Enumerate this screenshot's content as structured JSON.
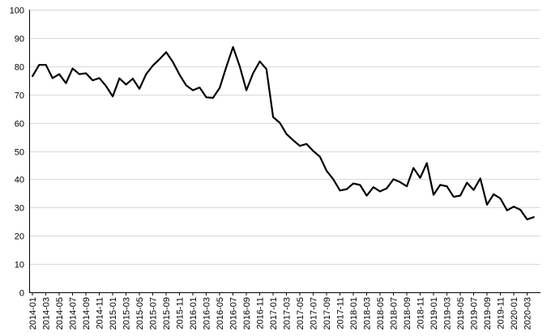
{
  "chart_data": {
    "type": "line",
    "title": "",
    "xlabel": "",
    "ylabel": "",
    "ylim": [
      0,
      100
    ],
    "yticks": [
      0,
      10,
      20,
      30,
      40,
      50,
      60,
      70,
      80,
      90,
      100
    ],
    "grid": "horizontal",
    "legend": "none",
    "line_color": "#000000",
    "grid_color": "#d9d9d9",
    "x": [
      "2014-01",
      "2014-02",
      "2014-03",
      "2014-04",
      "2014-05",
      "2014-06",
      "2014-07",
      "2014-08",
      "2014-09",
      "2014-10",
      "2014-11",
      "2014-12",
      "2015-01",
      "2015-02",
      "2015-03",
      "2015-04",
      "2015-05",
      "2015-06",
      "2015-07",
      "2015-08",
      "2015-09",
      "2015-10",
      "2015-11",
      "2015-12",
      "2016-01",
      "2016-02",
      "2016-03",
      "2016-04",
      "2016-05",
      "2016-06",
      "2016-07",
      "2016-08",
      "2016-09",
      "2016-10",
      "2016-11",
      "2016-12",
      "2017-01",
      "2017-02",
      "2017-03",
      "2017-04",
      "2017-05",
      "2017-06",
      "2017-07",
      "2017-08",
      "2017-09",
      "2017-10",
      "2017-11",
      "2017-12",
      "2018-01",
      "2018-02",
      "2018-03",
      "2018-04",
      "2018-05",
      "2018-06",
      "2018-07",
      "2018-08",
      "2018-09",
      "2018-10",
      "2018-11",
      "2018-12",
      "2019-01",
      "2019-02",
      "2019-03",
      "2019-04",
      "2019-05",
      "2019-06",
      "2019-07",
      "2019-08",
      "2019-09",
      "2019-10",
      "2019-11",
      "2019-12",
      "2020-01",
      "2020-02",
      "2020-03",
      "2020-04"
    ],
    "xtick_labels": [
      "2014-01",
      "2014-03",
      "2014-05",
      "2014-07",
      "2014-09",
      "2014-11",
      "2015-01",
      "2015-03",
      "2015-05",
      "2015-07",
      "2015-09",
      "2015-11",
      "2016-01",
      "2016-03",
      "2016-05",
      "2016-07",
      "2016-09",
      "2016-11",
      "2017-01",
      "2017-03",
      "2017-05",
      "2017-07",
      "2017-09",
      "2017-11",
      "2018-01",
      "2018-03",
      "2018-05",
      "2018-07",
      "2018-09",
      "2018-11",
      "2019-01",
      "2019-03",
      "2019-05",
      "2019-07",
      "2019-09",
      "2019-11",
      "2020-01",
      "2020-03"
    ],
    "series": [
      {
        "values": [
          76.5,
          80.5,
          80.5,
          75.8,
          77.2,
          74.0,
          79.2,
          77.2,
          77.5,
          75.0,
          75.8,
          73.0,
          69.3,
          75.7,
          73.5,
          75.6,
          72.0,
          77.2,
          80.2,
          82.5,
          85.0,
          81.5,
          77.0,
          73.2,
          71.5,
          72.5,
          69.0,
          68.8,
          72.3,
          79.8,
          86.8,
          80.0,
          71.5,
          77.5,
          81.7,
          79.0,
          62.0,
          60.0,
          56.0,
          53.8,
          51.8,
          52.5,
          50.0,
          48.0,
          43.0,
          40.0,
          36.0,
          36.5,
          38.5,
          38.0,
          34.2,
          37.2,
          35.7,
          36.8,
          40.0,
          39.0,
          37.5,
          44.0,
          40.5,
          45.7,
          34.5,
          38.0,
          37.5,
          33.8,
          34.2,
          38.8,
          36.2,
          40.3,
          31.0,
          34.7,
          33.2,
          29.0,
          30.3,
          29.2,
          25.8,
          26.6
        ]
      }
    ]
  }
}
